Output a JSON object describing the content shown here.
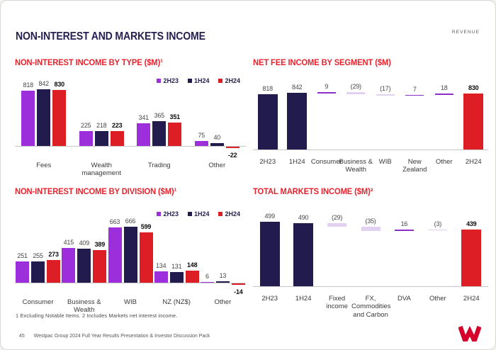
{
  "header": {
    "title": "NON-INTEREST AND MARKETS INCOME",
    "tag": "REVENUE"
  },
  "colors": {
    "purple": "#9c2fdb",
    "navy": "#221c4e",
    "red": "#dd1e25",
    "title_red": "#e8222d",
    "delta_positive": "#8c2fc7",
    "delta_negative": "#e2d0f0",
    "axis": "#c8c8c8",
    "logo_red": "#d5002b"
  },
  "legend": [
    {
      "label": "2H23",
      "color": "#9c2fdb"
    },
    {
      "label": "1H24",
      "color": "#221c4e"
    },
    {
      "label": "2H24",
      "color": "#dd1e25"
    }
  ],
  "chart_data": [
    {
      "type": "bar",
      "title": "NON-INTEREST INCOME BY TYPE ($M)¹",
      "categories": [
        "Fees",
        "Wealth management",
        "Trading",
        "Other"
      ],
      "series": [
        {
          "name": "2H23",
          "values": [
            818,
            225,
            341,
            75
          ]
        },
        {
          "name": "1H24",
          "values": [
            842,
            218,
            365,
            40
          ]
        },
        {
          "name": "2H24",
          "values": [
            830,
            223,
            351,
            -22
          ]
        }
      ],
      "legend_position": "top-right",
      "grid": false,
      "ylim": [
        -50,
        900
      ]
    },
    {
      "type": "waterfall",
      "title": "NET FEE INCOME BY SEGMENT ($M)",
      "columns": [
        {
          "label": "2H23",
          "value": 818,
          "display": "818",
          "kind": "total"
        },
        {
          "label": "1H24",
          "value": 842,
          "display": "842",
          "kind": "start"
        },
        {
          "label": "Consumer",
          "value": 9,
          "display": "9",
          "kind": "delta"
        },
        {
          "label": "Business & Wealth",
          "value": -29,
          "display": "(29)",
          "kind": "delta"
        },
        {
          "label": "WIB",
          "value": -17,
          "display": "(17)",
          "kind": "delta"
        },
        {
          "label": "New Zealand",
          "value": 7,
          "display": "7",
          "kind": "delta"
        },
        {
          "label": "Other",
          "value": 18,
          "display": "18",
          "kind": "delta"
        },
        {
          "label": "2H24",
          "value": 830,
          "display": "830",
          "kind": "end"
        }
      ],
      "grid": false
    },
    {
      "type": "bar",
      "title": "NON-INTEREST INCOME BY DIVISION ($M)¹",
      "categories": [
        "Consumer",
        "Business & Wealth",
        "WIB",
        "NZ (NZ$)",
        "Other"
      ],
      "series": [
        {
          "name": "2H23",
          "values": [
            251,
            415,
            663,
            134,
            6
          ]
        },
        {
          "name": "1H24",
          "values": [
            255,
            409,
            666,
            131,
            13
          ]
        },
        {
          "name": "2H24",
          "values": [
            273,
            389,
            599,
            148,
            -14
          ]
        }
      ],
      "legend_position": "top-right",
      "grid": false,
      "ylim": [
        -50,
        700
      ]
    },
    {
      "type": "waterfall",
      "title": "TOTAL MARKETS INCOME ($M)²",
      "columns": [
        {
          "label": "2H23",
          "value": 499,
          "display": "499",
          "kind": "total"
        },
        {
          "label": "1H24",
          "value": 490,
          "display": "490",
          "kind": "start"
        },
        {
          "label": "Fixed income",
          "value": -29,
          "display": "(29)",
          "kind": "delta"
        },
        {
          "label": "FX, Commodities and Carbon",
          "value": -35,
          "display": "(35)",
          "kind": "delta"
        },
        {
          "label": "DVA",
          "value": 16,
          "display": "16",
          "kind": "delta"
        },
        {
          "label": "Other",
          "value": -3,
          "display": "(3)",
          "kind": "delta"
        },
        {
          "label": "2H24",
          "value": 439,
          "display": "439",
          "kind": "end"
        }
      ],
      "grid": false
    }
  ],
  "footnote": "1 Excluding Notable Items. 2 Includes Markets net interest income.",
  "footer": {
    "page": "45",
    "text": "Westpac Group 2024 Full Year Results Presentation & Investor Discussion Pack"
  }
}
